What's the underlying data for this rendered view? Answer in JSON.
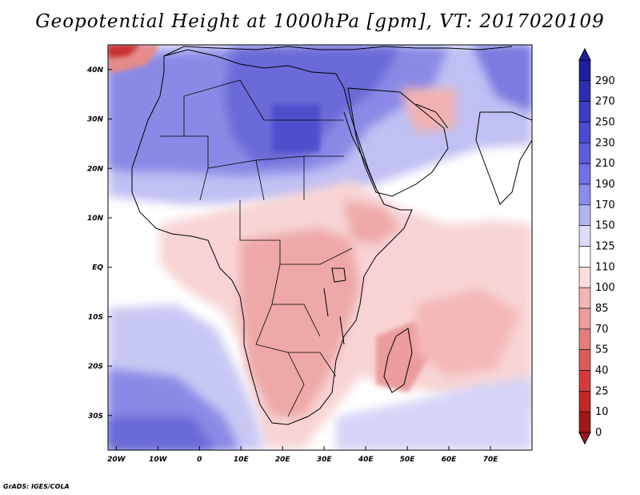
{
  "title": "Geopotential Height at 1000hPa [gpm], VT: 2017020109",
  "credit": "GrADS: IGES/COLA",
  "map": {
    "lon_ticks": [
      "20W",
      "10W",
      "0",
      "10E",
      "20E",
      "30E",
      "40E",
      "50E",
      "60E",
      "70E"
    ],
    "lat_ticks": [
      "40N",
      "30N",
      "20N",
      "10N",
      "EQ",
      "10S",
      "20S",
      "30S"
    ]
  },
  "colorbar": {
    "levels": [
      "290",
      "270",
      "250",
      "230",
      "210",
      "190",
      "170",
      "150",
      "125",
      "110",
      "100",
      "85",
      "70",
      "55",
      "40",
      "25",
      "10",
      "0"
    ],
    "colors": [
      "#1e1ea0",
      "#2d2db4",
      "#3c3cc6",
      "#4a4ad2",
      "#5c5cdc",
      "#7070e4",
      "#8c8cec",
      "#b4b4f4",
      "#dcdcfa",
      "#ffffff",
      "#fcdcdc",
      "#f4b4b4",
      "#ec9c9c",
      "#e47c7c",
      "#dc5c5c",
      "#d43c3c",
      "#c22828",
      "#a01818"
    ]
  },
  "colors": {
    "ocean_blue_light": "#d8d8f8",
    "ocean_blue": "#9a9ae8",
    "land_red": "#eeaaaa",
    "land_red_light": "#f8d0d0"
  }
}
